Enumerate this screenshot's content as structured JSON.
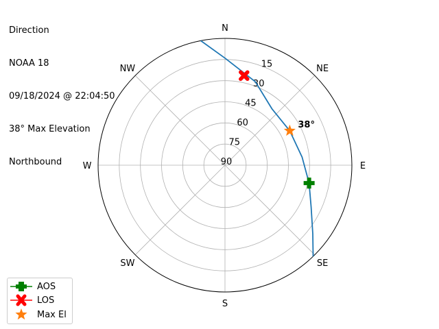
{
  "title_lines": [
    "Direction",
    "NOAA 18",
    "09/18/2024 @ 22:04:50",
    "38° Max Elevation",
    "Northbound"
  ],
  "chart_data": {
    "type": "polar-line",
    "theta_direction": "clockwise",
    "theta_zero": "N",
    "compass_labels": [
      "N",
      "NE",
      "E",
      "SE",
      "S",
      "SW",
      "W",
      "NW"
    ],
    "radial_ticks": [
      "15",
      "30",
      "45",
      "60",
      "75",
      "90"
    ],
    "radial_tick_values": [
      15,
      30,
      45,
      60,
      75,
      90
    ],
    "r_range": [
      0,
      90
    ],
    "grid": true,
    "track": {
      "color": "#1f77b4",
      "azimuth_deg": [
        349,
        0,
        20,
        40,
        62,
        84,
        102,
        116,
        128,
        136
      ],
      "elevation_deg": [
        0,
        14,
        27,
        38,
        38,
        35,
        29,
        22,
        11,
        0
      ]
    },
    "markers": [
      {
        "name": "AOS",
        "azimuth_deg": 102,
        "elevation_deg": 29,
        "color": "#008000",
        "shape": "plus"
      },
      {
        "name": "LOS",
        "azimuth_deg": 12,
        "elevation_deg": 25,
        "color": "#ff0000",
        "shape": "x"
      },
      {
        "name": "Max El",
        "azimuth_deg": 62,
        "elevation_deg": 38,
        "color": "#ff7f0e",
        "shape": "star"
      }
    ],
    "annotation": "38°",
    "legend": {
      "placement": "lower-left",
      "entries": [
        "AOS",
        "LOS",
        "Max El"
      ]
    }
  }
}
